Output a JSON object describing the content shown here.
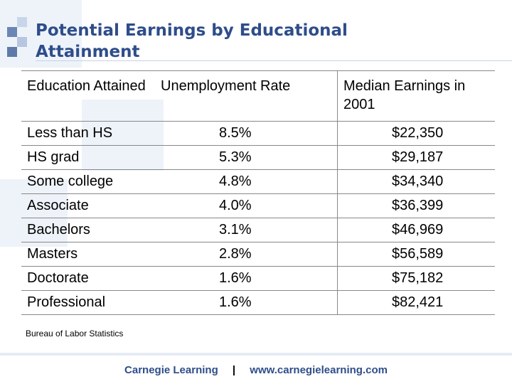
{
  "title": "Potential Earnings by Educational Attainment",
  "table": {
    "headers": [
      "Education Attained",
      "Unemployment Rate",
      "Median Earnings in 2001"
    ],
    "rows": [
      {
        "education": "Less than HS",
        "rate": "8.5%",
        "earnings": "$22,350"
      },
      {
        "education": "HS grad",
        "rate": "5.3%",
        "earnings": "$29,187"
      },
      {
        "education": "Some college",
        "rate": "4.8%",
        "earnings": "$34,340"
      },
      {
        "education": "Associate",
        "rate": "4.0%",
        "earnings": "$36,399"
      },
      {
        "education": "Bachelors",
        "rate": "3.1%",
        "earnings": "$46,969"
      },
      {
        "education": "Masters",
        "rate": "2.8%",
        "earnings": "$56,589"
      },
      {
        "education": "Doctorate",
        "rate": "1.6%",
        "earnings": "$75,182"
      },
      {
        "education": "Professional",
        "rate": "1.6%",
        "earnings": "$82,421"
      }
    ]
  },
  "source": "Bureau of Labor Statistics",
  "footer": {
    "company": "Carnegie Learning",
    "separator": "|",
    "website": "www.carnegielearning.com"
  },
  "colors": {
    "title": "#2e4d8a",
    "accent_light": "#eef3fa"
  }
}
